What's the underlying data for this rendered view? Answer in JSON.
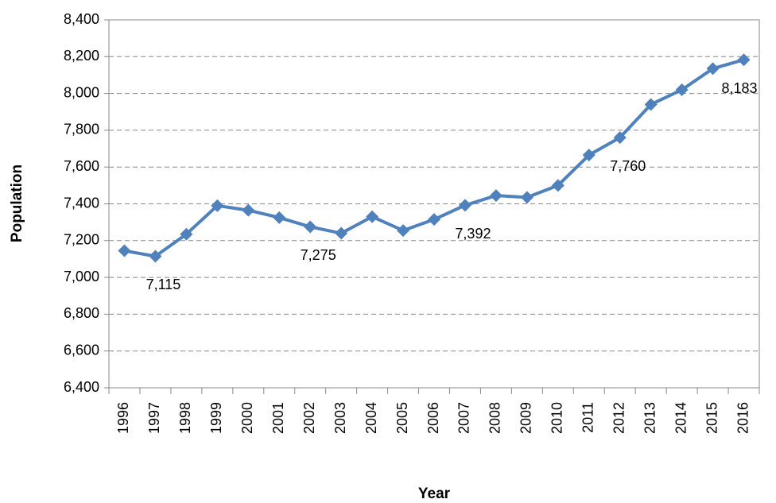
{
  "chart_data": {
    "type": "line",
    "x_label": "Year",
    "y_label": "Population",
    "categories": [
      "1996",
      "1997",
      "1998",
      "1999",
      "2000",
      "2001",
      "2002",
      "2003",
      "2004",
      "2005",
      "2006",
      "2007",
      "2008",
      "2009",
      "2010",
      "2011",
      "2012",
      "2013",
      "2014",
      "2015",
      "2016"
    ],
    "series": [
      {
        "name": "Population",
        "color": "#4f81bd",
        "values": [
          7145,
          7115,
          7235,
          7390,
          7365,
          7325,
          7275,
          7240,
          7330,
          7255,
          7315,
          7392,
          7445,
          7435,
          7500,
          7665,
          7760,
          7940,
          8020,
          8135,
          8183
        ],
        "value_labels": [
          null,
          "7,115",
          null,
          null,
          null,
          null,
          "7,275",
          null,
          null,
          null,
          null,
          "7,392",
          null,
          null,
          null,
          null,
          "7,760",
          null,
          null,
          null,
          "8,183"
        ]
      }
    ],
    "ylim": [
      6400,
      8400
    ],
    "yticks": [
      {
        "value": 6400,
        "label": "6,400"
      },
      {
        "value": 6600,
        "label": "6,600"
      },
      {
        "value": 6800,
        "label": "6,800"
      },
      {
        "value": 7000,
        "label": "7,000"
      },
      {
        "value": 7200,
        "label": "7,200"
      },
      {
        "value": 7400,
        "label": "7,400"
      },
      {
        "value": 7600,
        "label": "7,600"
      },
      {
        "value": 7800,
        "label": "7,800"
      },
      {
        "value": 8000,
        "label": "8,000"
      },
      {
        "value": 8200,
        "label": "8,200"
      },
      {
        "value": 8400,
        "label": "8,400"
      }
    ],
    "grid": true
  }
}
